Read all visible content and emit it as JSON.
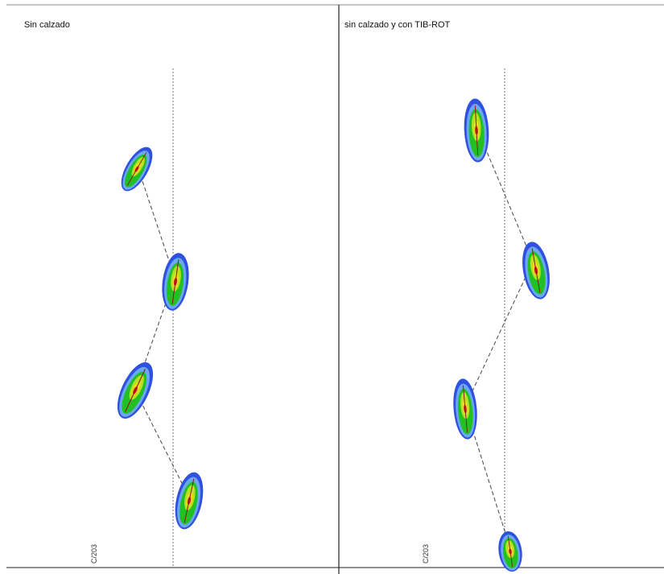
{
  "panels": [
    {
      "title": "Sin calzado",
      "axis_label": "C/203"
    },
    {
      "title": "sin calzado y con TIB-ROT",
      "axis_label": "C/203"
    }
  ]
}
